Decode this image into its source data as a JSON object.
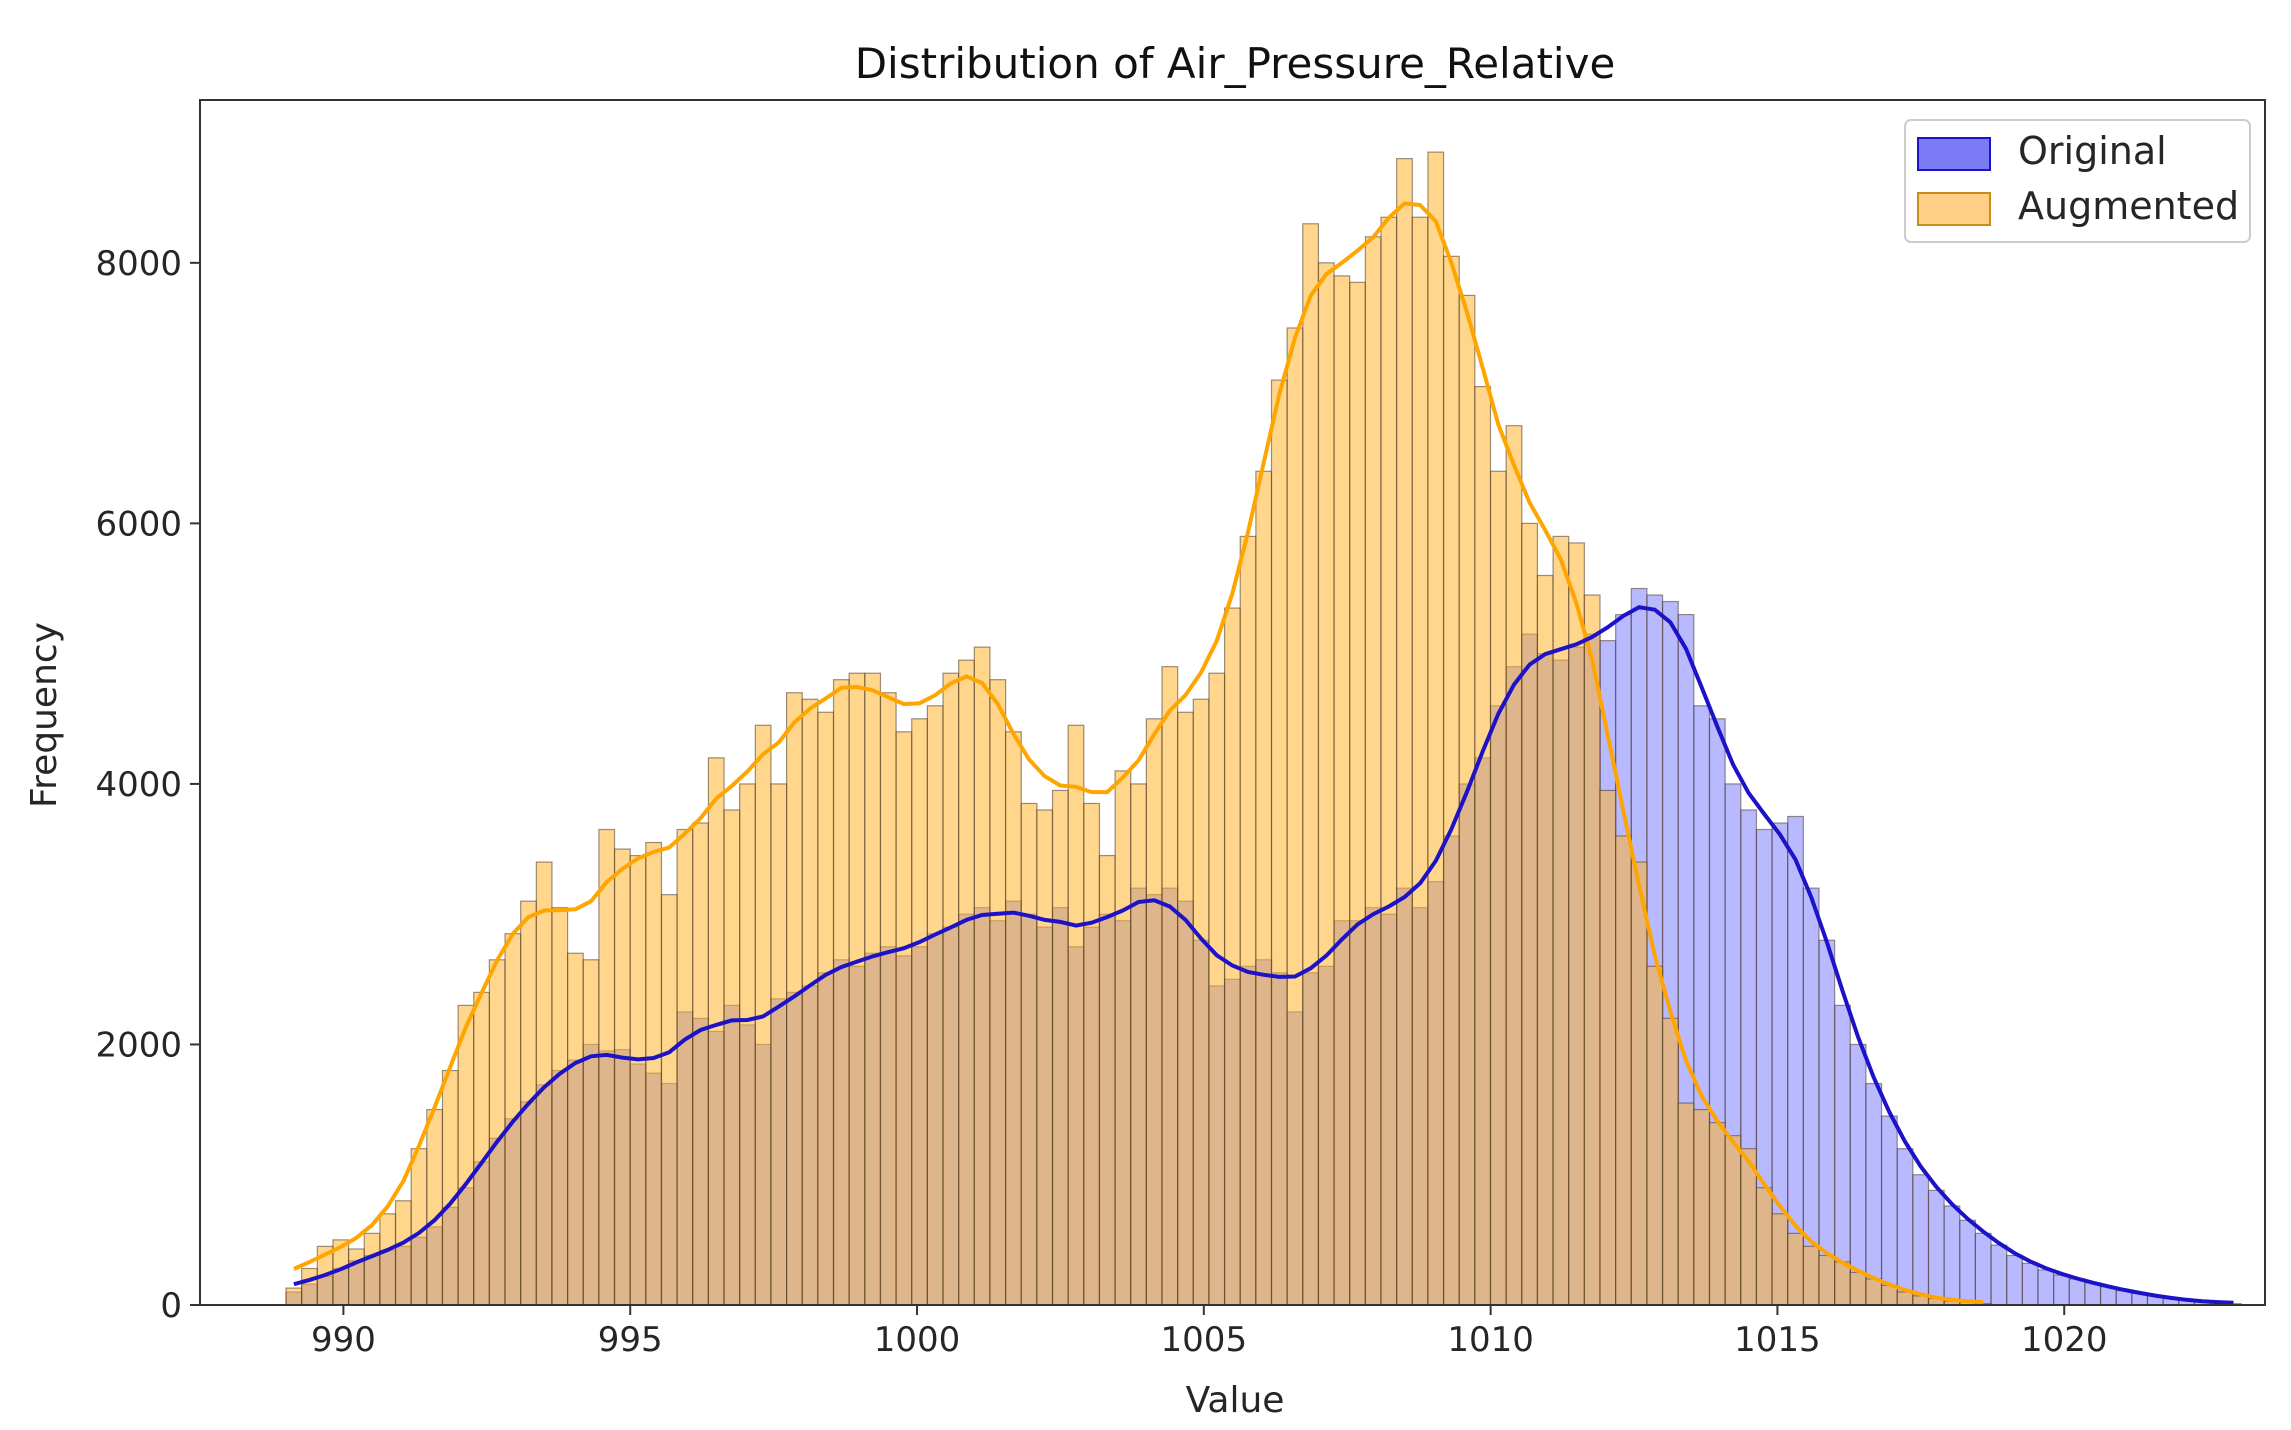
{
  "chart_data": {
    "type": "histogram",
    "title": "Distribution of Air_Pressure_Relative",
    "xlabel": "Value",
    "ylabel": "Frequency",
    "xlim": [
      987.5,
      1023.5
    ],
    "ylim": [
      0,
      9250
    ],
    "xticks": [
      990,
      995,
      1000,
      1005,
      1010,
      1015,
      1020
    ],
    "xtick_labels": [
      "990",
      "995",
      "1000",
      "1005",
      "1010",
      "1015",
      "1020"
    ],
    "yticks": [
      0,
      2000,
      4000,
      6000,
      8000
    ],
    "ytick_labels": [
      "0",
      "2000",
      "4000",
      "6000",
      "8000"
    ],
    "bins": {
      "start": 989.0,
      "width": 0.2727
    },
    "legend": {
      "position": "top-right"
    },
    "series": [
      {
        "name": "Original",
        "color": "#0000ff",
        "kde_color": "#1c12c8",
        "fill_opacity": 0.5,
        "values": [
          100,
          160,
          220,
          280,
          340,
          380,
          420,
          450,
          520,
          600,
          750,
          900,
          1100,
          1280,
          1430,
          1560,
          1690,
          1800,
          1880,
          2000,
          1950,
          1960,
          1850,
          1780,
          1700,
          2250,
          2200,
          2100,
          2300,
          2150,
          2000,
          2350,
          2400,
          2450,
          2550,
          2650,
          2600,
          2700,
          2750,
          2680,
          2750,
          2850,
          2900,
          3000,
          3050,
          2950,
          3100,
          3000,
          2900,
          3050,
          2750,
          2900,
          3000,
          2950,
          3200,
          3150,
          3200,
          3100,
          2800,
          2450,
          2500,
          2600,
          2650,
          2550,
          2250,
          2550,
          2600,
          2950,
          2950,
          3050,
          3000,
          3200,
          3050,
          3250,
          3600,
          4000,
          4200,
          4600,
          4900,
          5150,
          5000,
          4950,
          5050,
          5150,
          5100,
          5300,
          5500,
          5450,
          5400,
          5300,
          4600,
          4500,
          4000,
          3800,
          3650,
          3700,
          3750,
          3200,
          2800,
          2300,
          2000,
          1700,
          1450,
          1200,
          1000,
          880,
          760,
          650,
          550,
          460,
          380,
          320,
          270,
          230,
          200,
          170,
          140,
          110,
          90,
          70,
          50,
          35,
          25,
          15,
          10
        ]
      },
      {
        "name": "Augmented",
        "color": "#ffa500",
        "kde_color": "#ffa500",
        "fill_opacity": 0.55,
        "values": [
          130,
          280,
          450,
          500,
          430,
          550,
          700,
          800,
          1200,
          1500,
          1800,
          2300,
          2400,
          2650,
          2850,
          3100,
          3400,
          3050,
          2700,
          2650,
          3650,
          3500,
          3450,
          3550,
          3150,
          3650,
          3700,
          4200,
          3800,
          4000,
          4450,
          4000,
          4700,
          4650,
          4550,
          4800,
          4850,
          4850,
          4700,
          4400,
          4500,
          4600,
          4850,
          4950,
          5050,
          4800,
          4400,
          3850,
          3800,
          3950,
          4450,
          3850,
          3450,
          4100,
          4000,
          4500,
          4900,
          4550,
          4650,
          4850,
          5350,
          5900,
          6400,
          7100,
          7500,
          8300,
          8000,
          7900,
          7850,
          8200,
          8350,
          8800,
          8350,
          8850,
          8050,
          7750,
          7050,
          6400,
          6750,
          6000,
          5600,
          5900,
          5850,
          5450,
          3950,
          3600,
          3400,
          2600,
          2200,
          1550,
          1500,
          1400,
          1300,
          1200,
          900,
          700,
          550,
          450,
          380,
          330,
          250,
          200,
          150,
          100,
          70,
          50,
          30,
          20,
          10
        ]
      }
    ]
  }
}
